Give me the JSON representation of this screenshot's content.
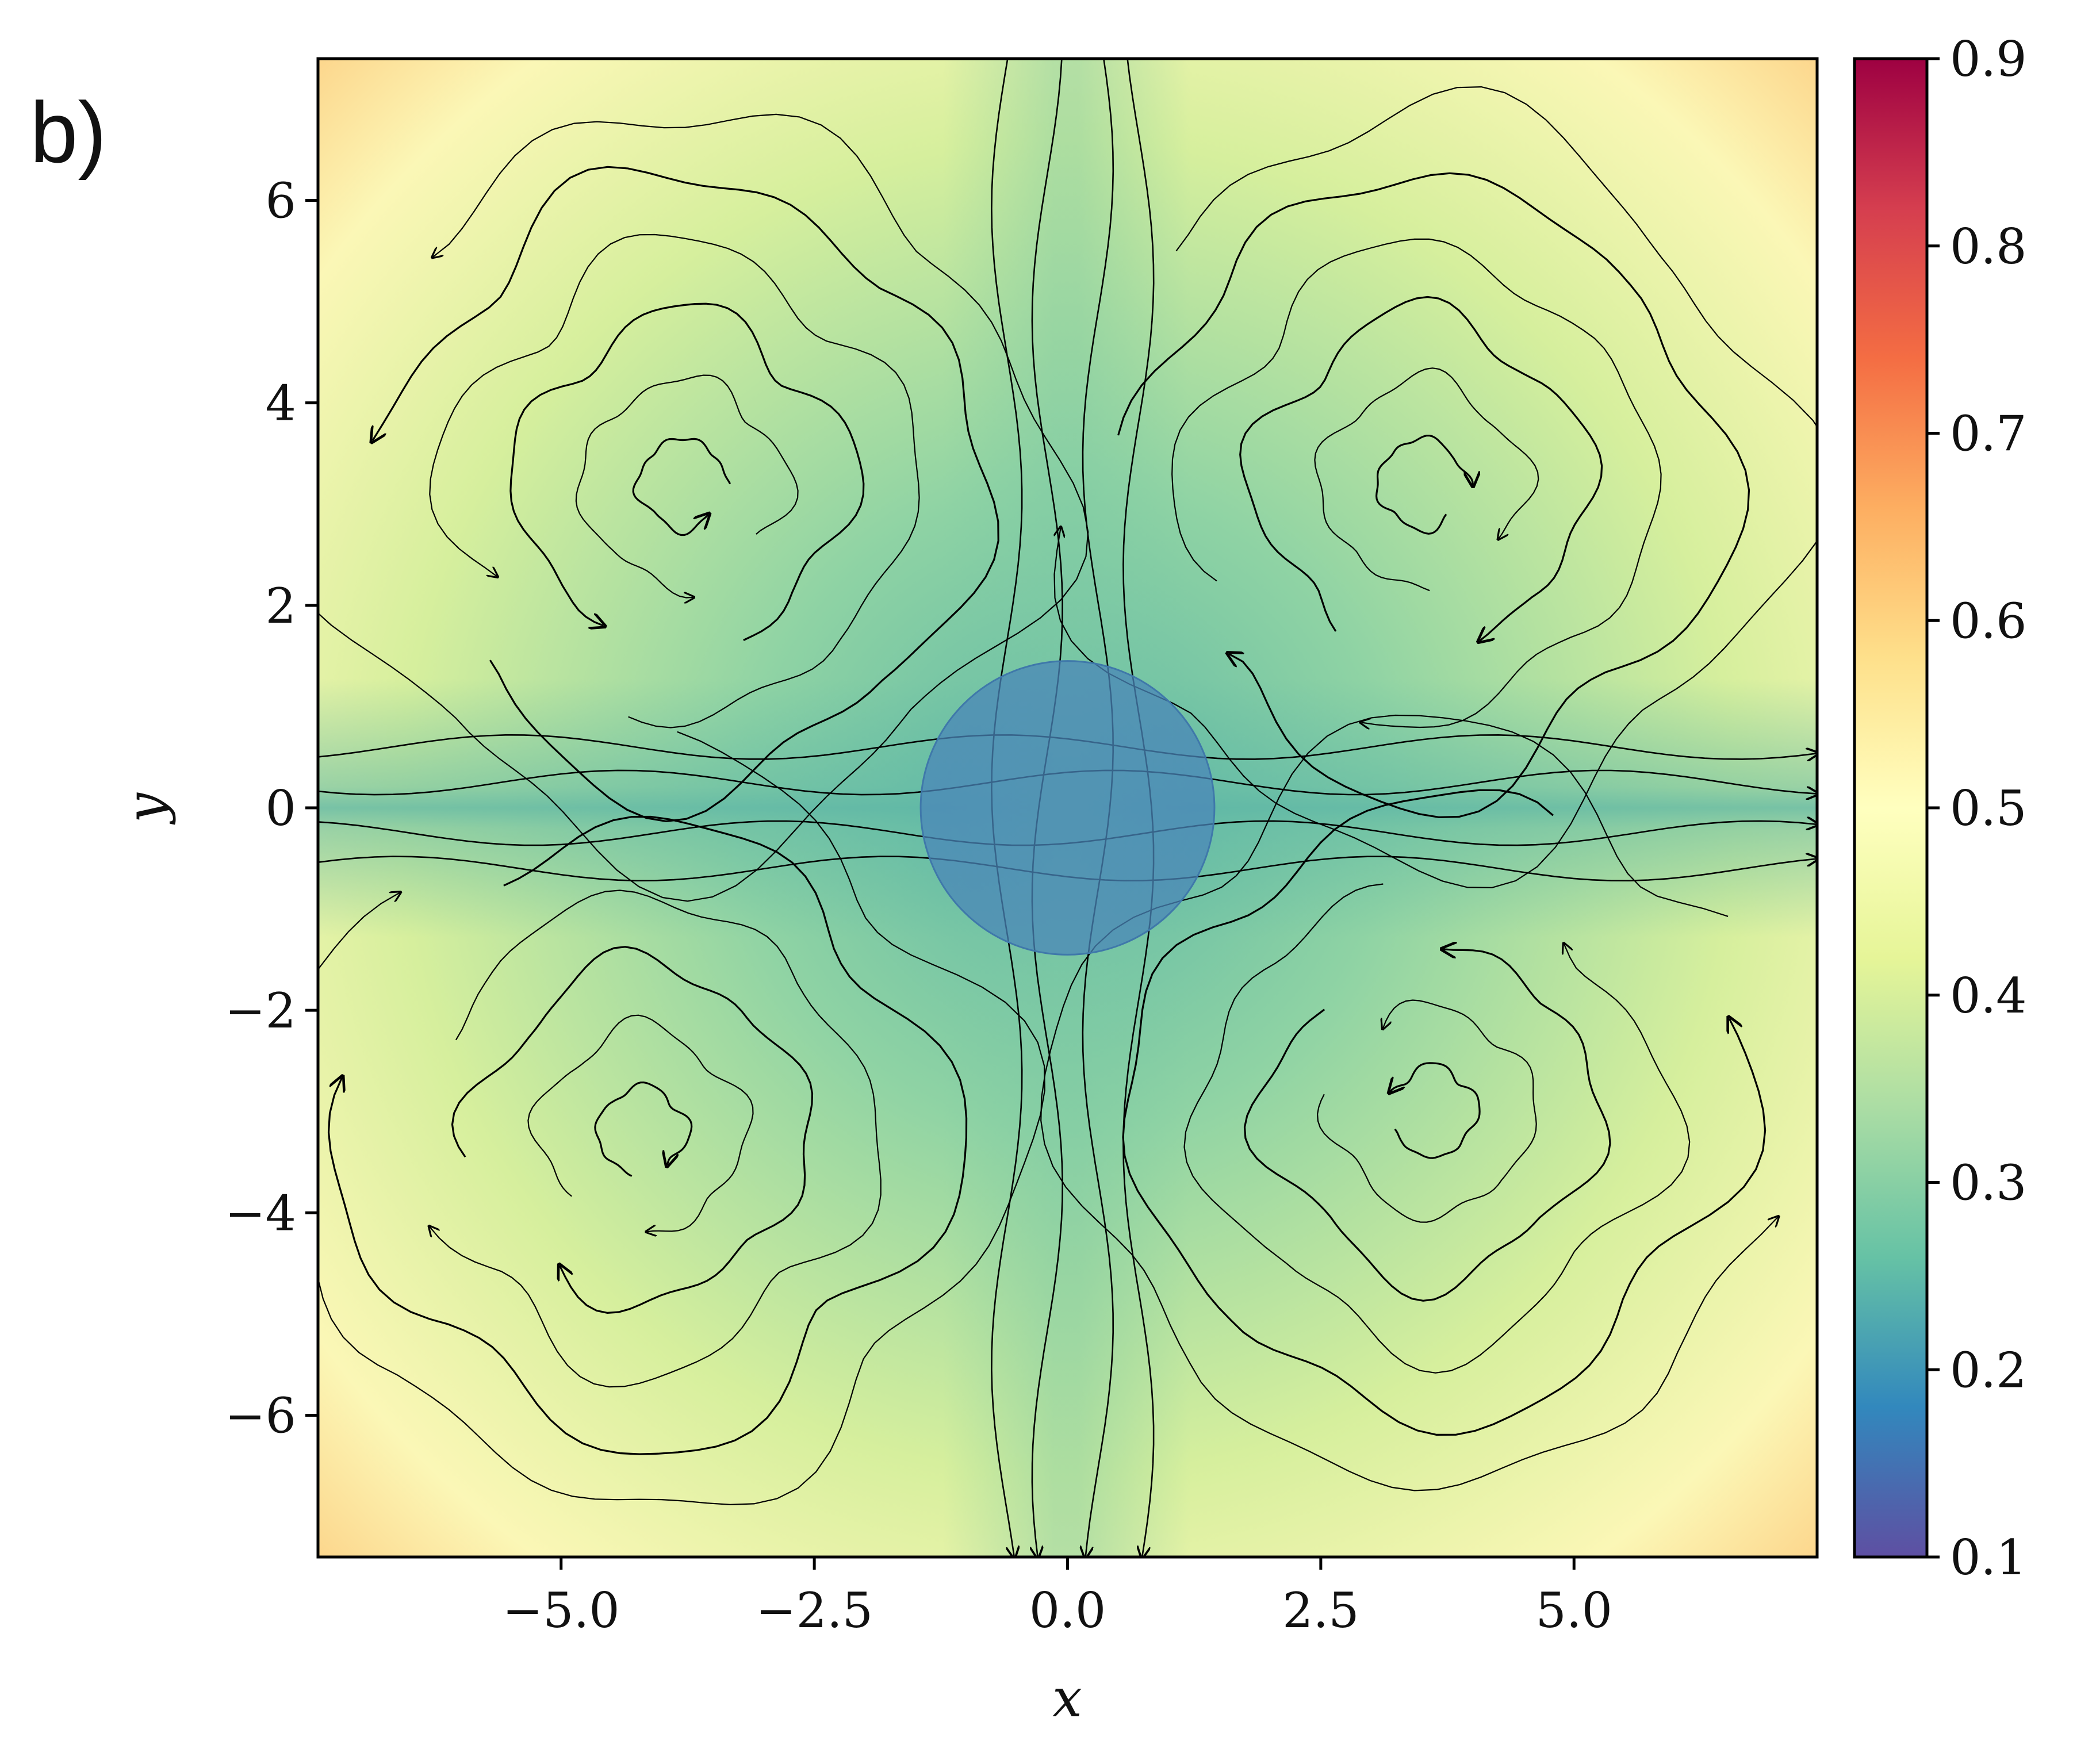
{
  "panel_label": "b)",
  "chart_data": {
    "type": "heatmap",
    "title": "",
    "xlabel": "x",
    "ylabel": "y",
    "xlim": [
      -7.4,
      7.4
    ],
    "ylim": [
      -7.4,
      7.4
    ],
    "x_ticks": [
      -5.0,
      -2.5,
      0.0,
      2.5,
      5.0
    ],
    "x_tick_labels": [
      "−5.0",
      "−2.5",
      "0.0",
      "2.5",
      "5.0"
    ],
    "y_ticks": [
      -6,
      -4,
      -2,
      0,
      2,
      4,
      6
    ],
    "y_tick_labels": [
      "−6",
      "−4",
      "−2",
      "0",
      "2",
      "4",
      "6"
    ],
    "colorbar": {
      "min": 0.1,
      "max": 0.9,
      "ticks": [
        0.1,
        0.2,
        0.3,
        0.4,
        0.5,
        0.6,
        0.7,
        0.8,
        0.9
      ],
      "tick_labels": [
        "0.1",
        "0.2",
        "0.3",
        "0.4",
        "0.5",
        "0.6",
        "0.7",
        "0.8",
        "0.9"
      ],
      "colormap": "Spectral_r",
      "colors": [
        "#5e4fa2",
        "#3288bd",
        "#66c2a5",
        "#abdda4",
        "#e6f598",
        "#ffffbf",
        "#fee08b",
        "#fdae61",
        "#f46d43",
        "#d53e4f",
        "#9e0142"
      ]
    },
    "field_description": "four counter-rotating vortex cells; lower values along the x and y axes, higher values toward the domain boundary",
    "vortices": [
      {
        "center": [
          -3.8,
          3.2
        ],
        "rotation": "counterclockwise"
      },
      {
        "center": [
          3.5,
          3.2
        ],
        "rotation": "clockwise"
      },
      {
        "center": [
          -4.2,
          -3.2
        ],
        "rotation": "clockwise"
      },
      {
        "center": [
          3.6,
          -3.0
        ],
        "rotation": "counterclockwise"
      }
    ],
    "obstacle": {
      "center": [
        0.0,
        0.0
      ],
      "radius": 1.45,
      "color": "#4a86b8",
      "opacity": 0.75
    },
    "streamline_color": "#000000",
    "grid": false
  }
}
